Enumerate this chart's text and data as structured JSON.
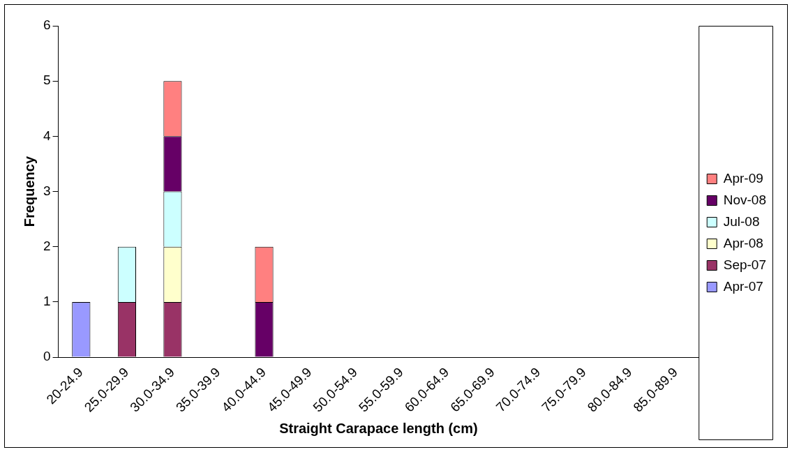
{
  "chart_data": {
    "type": "bar",
    "stacked": true,
    "xlabel": "Straight Carapace length (cm)",
    "ylabel": "Frequency",
    "categories": [
      "20-24.9",
      "25.0-29.9",
      "30.0-34.9",
      "35.0-39.9",
      "40.0-44.9",
      "45.0-49.9",
      "50.0-54.9",
      "55.0-59.9",
      "60.0-64.9",
      "65.0-69.9",
      "70.0-74.9",
      "75.0-79.9",
      "80.0-84.9",
      "85.0-89.9"
    ],
    "series": [
      {
        "name": "Apr-07",
        "color": "#9999ff",
        "values": [
          1,
          0,
          0,
          0,
          0,
          0,
          0,
          0,
          0,
          0,
          0,
          0,
          0,
          0
        ]
      },
      {
        "name": "Sep-07",
        "color": "#993366",
        "values": [
          0,
          1,
          1,
          0,
          0,
          0,
          0,
          0,
          0,
          0,
          0,
          0,
          0,
          0
        ]
      },
      {
        "name": "Apr-08",
        "color": "#ffffcc",
        "values": [
          0,
          0,
          1,
          0,
          0,
          0,
          0,
          0,
          0,
          0,
          0,
          0,
          0,
          0
        ]
      },
      {
        "name": "Jul-08",
        "color": "#ccffff",
        "values": [
          0,
          1,
          1,
          0,
          0,
          0,
          0,
          0,
          0,
          0,
          0,
          0,
          0,
          0
        ]
      },
      {
        "name": "Nov-08",
        "color": "#660066",
        "values": [
          0,
          0,
          1,
          0,
          1,
          0,
          0,
          0,
          0,
          0,
          0,
          0,
          0,
          0
        ]
      },
      {
        "name": "Apr-09",
        "color": "#ff8080",
        "values": [
          0,
          0,
          1,
          0,
          1,
          0,
          0,
          0,
          0,
          0,
          0,
          0,
          0,
          0
        ]
      }
    ],
    "ylim": [
      0,
      6
    ],
    "yticks": [
      0,
      1,
      2,
      3,
      4,
      5,
      6
    ],
    "grid": false,
    "legend": "right"
  }
}
